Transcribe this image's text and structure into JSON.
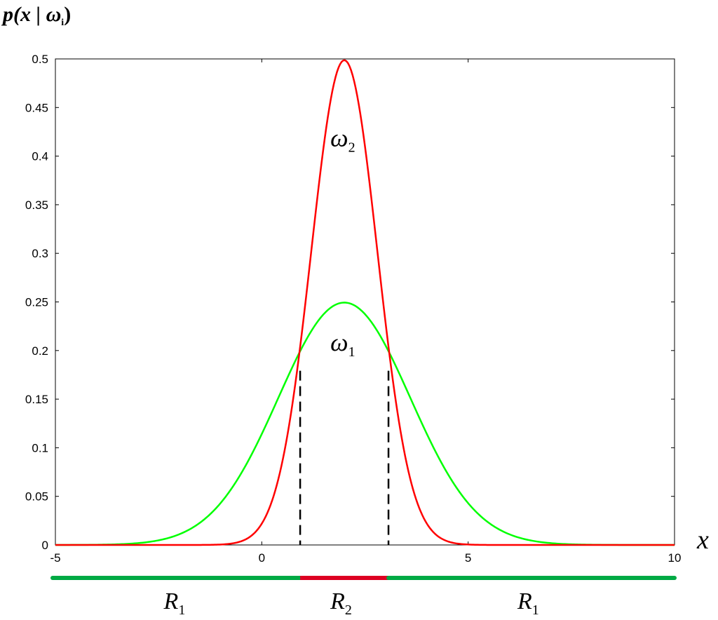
{
  "chart_data": {
    "type": "line",
    "ylabel": "p(x | ω",
    "ylabel_sub": "i",
    "ylabel_close": ")",
    "xlabel": "x",
    "xlim": [
      -5,
      10
    ],
    "ylim": [
      0,
      0.5
    ],
    "xticks": [
      -5,
      0,
      5,
      10
    ],
    "xtick_labels": [
      "-5",
      "0",
      "5",
      "10"
    ],
    "yticks": [
      0,
      0.05,
      0.1,
      0.15,
      0.2,
      0.25,
      0.3,
      0.35,
      0.4,
      0.45,
      0.5
    ],
    "ytick_labels": [
      "0",
      "0.05",
      "0.1",
      "0.15",
      "0.2",
      "0.25",
      "0.3",
      "0.35",
      "0.4",
      "0.45",
      "0.5"
    ],
    "grid": false,
    "series": [
      {
        "name": "ω1",
        "label_base": "ω",
        "label_sub": "1",
        "color": "#00ff00",
        "mean": 2,
        "std": 1.6,
        "label_at": [
          1.9,
          0.2
        ]
      },
      {
        "name": "ω2",
        "label_base": "ω",
        "label_sub": "2",
        "color": "#ff0000",
        "mean": 2,
        "std": 0.8,
        "label_at": [
          1.9,
          0.41
        ]
      }
    ],
    "x_samples": [
      -5,
      -4.5,
      -4,
      -3.5,
      -3,
      -2.5,
      -2,
      -1.5,
      -1,
      -0.5,
      0,
      0.5,
      0.93,
      1,
      1.5,
      2,
      2.5,
      3,
      3.07,
      3.5,
      4,
      4.5,
      5,
      5.5,
      6,
      6.5,
      7,
      7.5,
      8,
      8.5,
      9,
      9.5,
      10
    ],
    "decision_boundaries": [
      0.93,
      3.07
    ],
    "regions": [
      {
        "label_base": "R",
        "label_sub": "1",
        "from": -5,
        "to": 0.93,
        "color": "#00aa44"
      },
      {
        "label_base": "R",
        "label_sub": "2",
        "from": 0.93,
        "to": 3.07,
        "color": "#dd0022"
      },
      {
        "label_base": "R",
        "label_sub": "1",
        "from": 3.07,
        "to": 10,
        "color": "#00aa44"
      }
    ]
  }
}
